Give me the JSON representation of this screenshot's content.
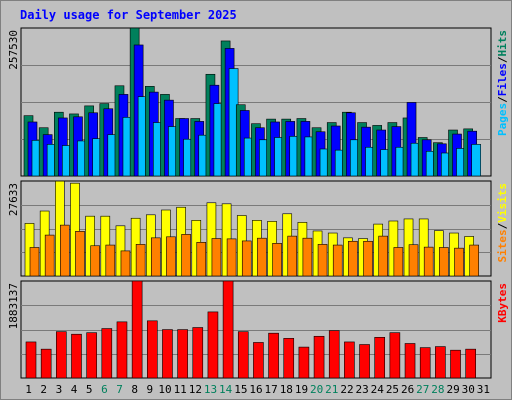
{
  "title": "Daily usage for September 2025",
  "legend": {
    "pages": "Pages",
    "files": "Files",
    "hits": "Hits",
    "sites": "Sites",
    "visits": "Visits",
    "kbytes": "KBytes",
    "sep": "/"
  },
  "colors": {
    "background": "#c0c0c0",
    "title": "#0000ff",
    "hits": "#00805c",
    "files": "#0000ff",
    "pages": "#00c0ff",
    "visits": "#ffff00",
    "sites": "#ff8000",
    "kbytes": "#ff0000",
    "weekend_label": "#00805c",
    "weekday_label": "#000000"
  },
  "chart_data": [
    {
      "type": "bar",
      "panel": "hits-files-pages",
      "ylabel": "257530",
      "ylim": [
        0,
        257530
      ],
      "categories": [
        "1",
        "2",
        "3",
        "4",
        "5",
        "6",
        "7",
        "8",
        "9",
        "10",
        "11",
        "12",
        "13",
        "14",
        "15",
        "16",
        "17",
        "18",
        "19",
        "20",
        "21",
        "22",
        "23",
        "24",
        "25",
        "26",
        "27",
        "28",
        "29",
        "30",
        "31"
      ],
      "series": [
        {
          "name": "Hits",
          "values": [
            105000,
            84000,
            111000,
            108000,
            122000,
            126000,
            157000,
            257500,
            156000,
            142000,
            100000,
            100000,
            177000,
            235000,
            124000,
            91000,
            99000,
            99000,
            100000,
            84000,
            93000,
            111000,
            93000,
            88000,
            93000,
            101000,
            67000,
            58000,
            80000,
            82000,
            0
          ]
        },
        {
          "name": "Files",
          "values": [
            94000,
            72000,
            101000,
            103000,
            110000,
            117000,
            142000,
            228000,
            146000,
            132000,
            100000,
            95000,
            158000,
            222000,
            114000,
            84000,
            94000,
            95000,
            95000,
            77000,
            87000,
            110000,
            85000,
            80000,
            86000,
            128000,
            63000,
            56000,
            73000,
            78000,
            0
          ]
        },
        {
          "name": "Pages",
          "values": [
            62000,
            55000,
            53000,
            61000,
            65000,
            72000,
            102000,
            138000,
            93000,
            86000,
            64000,
            71000,
            126000,
            187000,
            66000,
            63000,
            67000,
            69000,
            68000,
            47000,
            45000,
            63000,
            50000,
            46000,
            50000,
            57000,
            43000,
            40000,
            48000,
            55000,
            0
          ]
        }
      ]
    },
    {
      "type": "bar",
      "panel": "visits-sites",
      "ylabel": "27633",
      "ylim": [
        0,
        27633
      ],
      "series": [
        {
          "name": "Visits",
          "values": [
            15300,
            18900,
            27600,
            27000,
            17400,
            17400,
            14600,
            16800,
            17800,
            19200,
            20000,
            16200,
            21300,
            21000,
            17600,
            16200,
            15900,
            18100,
            15600,
            13100,
            12500,
            11100,
            10900,
            15100,
            16000,
            16600,
            16600,
            13200,
            12500,
            11500,
            0
          ]
        },
        {
          "name": "Sites",
          "values": [
            8300,
            11900,
            14800,
            13000,
            8800,
            9000,
            7300,
            9200,
            11100,
            11400,
            12100,
            9800,
            10900,
            10800,
            10200,
            11000,
            9500,
            11600,
            11000,
            9200,
            9000,
            10100,
            10100,
            11600,
            8300,
            9100,
            8400,
            8300,
            8100,
            9000,
            0
          ]
        }
      ]
    },
    {
      "type": "bar",
      "panel": "kbytes",
      "ylabel": "1883137",
      "ylim": [
        0,
        1883137
      ],
      "series": [
        {
          "name": "KBytes",
          "values": [
            700000,
            560000,
            900000,
            850000,
            880000,
            960000,
            1090000,
            1883137,
            1110000,
            940000,
            940000,
            980000,
            1283000,
            1883137,
            900000,
            690000,
            870000,
            770000,
            600000,
            810000,
            920000,
            700000,
            650000,
            790000,
            880000,
            670000,
            590000,
            610000,
            540000,
            560000,
            0
          ]
        }
      ]
    }
  ]
}
